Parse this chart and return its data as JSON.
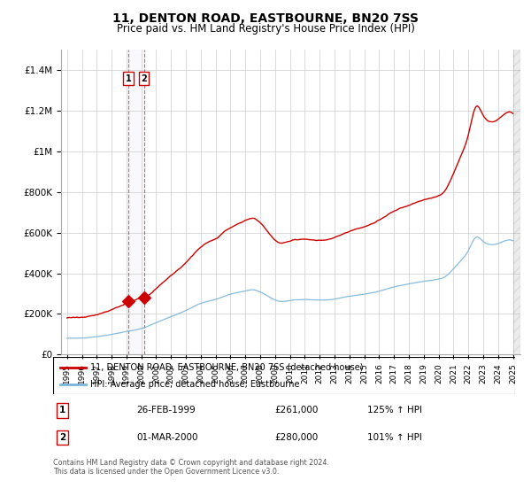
{
  "title": "11, DENTON ROAD, EASTBOURNE, BN20 7SS",
  "subtitle": "Price paid vs. HM Land Registry's House Price Index (HPI)",
  "footer": "Contains HM Land Registry data © Crown copyright and database right 2024.\nThis data is licensed under the Open Government Licence v3.0.",
  "legend_line1": "11, DENTON ROAD, EASTBOURNE, BN20 7SS (detached house)",
  "legend_line2": "HPI: Average price, detached house, Eastbourne",
  "sale1_date": "26-FEB-1999",
  "sale1_price": "£261,000",
  "sale1_hpi": "125% ↑ HPI",
  "sale1_year": 1999.12,
  "sale1_value": 261000,
  "sale2_date": "01-MAR-2000",
  "sale2_price": "£280,000",
  "sale2_hpi": "101% ↑ HPI",
  "sale2_year": 2000.17,
  "sale2_value": 280000,
  "hpi_color": "#7ab4d8",
  "price_color": "#cc0000",
  "grid_color": "#cccccc",
  "background_color": "#ffffff",
  "ylim": [
    0,
    1500000
  ],
  "yticks": [
    0,
    200000,
    400000,
    600000,
    800000,
    1000000,
    1200000,
    1400000
  ],
  "ytick_labels": [
    "£0",
    "£200K",
    "£400K",
    "£600K",
    "£800K",
    "£1M",
    "£1.2M",
    "£1.4M"
  ],
  "xlim_start": 1994.6,
  "xlim_end": 2025.5
}
